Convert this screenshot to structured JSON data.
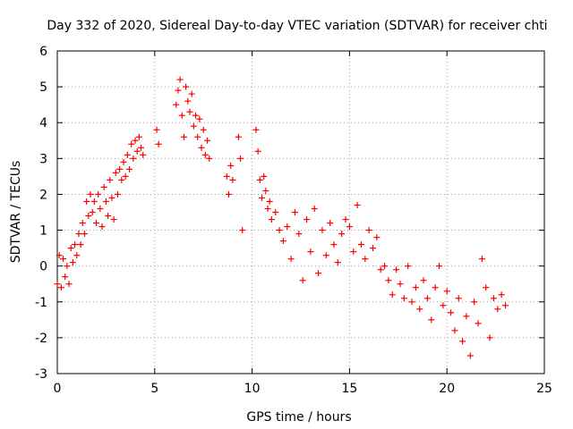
{
  "chart_data": {
    "type": "scatter",
    "title": "Day 332 of 2020, Sidereal Day-to-day VTEC variation (SDTVAR) for receiver chti",
    "xlabel": "GPS time / hours",
    "ylabel": "SDTVAR / TECUs",
    "xlim": [
      0,
      25
    ],
    "ylim": [
      -3,
      6
    ],
    "xticks": [
      0,
      5,
      10,
      15,
      20,
      25
    ],
    "yticks": [
      -3,
      -2,
      -1,
      0,
      1,
      2,
      3,
      4,
      5,
      6
    ],
    "grid": true,
    "marker": "+",
    "color": "#ff0000",
    "series": [
      {
        "name": "SDTVAR",
        "x": [
          0.0,
          0.1,
          0.2,
          0.3,
          0.4,
          0.5,
          0.6,
          0.7,
          0.8,
          0.9,
          1.0,
          1.1,
          1.2,
          1.3,
          1.4,
          1.5,
          1.6,
          1.7,
          1.8,
          1.9,
          2.0,
          2.1,
          2.2,
          2.3,
          2.4,
          2.5,
          2.6,
          2.7,
          2.8,
          2.9,
          3.0,
          3.1,
          3.2,
          3.3,
          3.4,
          3.5,
          3.6,
          3.7,
          3.8,
          3.9,
          4.0,
          4.1,
          4.2,
          4.3,
          4.4,
          5.1,
          5.2,
          6.1,
          6.2,
          6.3,
          6.4,
          6.5,
          6.6,
          6.7,
          6.8,
          6.9,
          7.0,
          7.1,
          7.2,
          7.3,
          7.4,
          7.5,
          7.6,
          7.7,
          7.8,
          8.7,
          8.8,
          8.9,
          9.0,
          9.3,
          9.4,
          9.5,
          10.2,
          10.3,
          10.4,
          10.5,
          10.6,
          10.7,
          10.8,
          10.9,
          11.0,
          11.2,
          11.4,
          11.6,
          11.8,
          12.0,
          12.2,
          12.4,
          12.6,
          12.8,
          13.0,
          13.2,
          13.4,
          13.6,
          13.8,
          14.0,
          14.2,
          14.4,
          14.6,
          14.8,
          15.0,
          15.2,
          15.4,
          15.6,
          15.8,
          16.0,
          16.2,
          16.4,
          16.6,
          16.8,
          17.0,
          17.2,
          17.4,
          17.6,
          17.8,
          18.0,
          18.2,
          18.4,
          18.6,
          18.8,
          19.0,
          19.2,
          19.4,
          19.6,
          19.8,
          20.0,
          20.2,
          20.4,
          20.6,
          20.8,
          21.0,
          21.2,
          21.4,
          21.6,
          21.8,
          22.0,
          22.2,
          22.4,
          22.6,
          22.8,
          23.0
        ],
        "y": [
          -0.5,
          0.3,
          -0.6,
          0.2,
          -0.3,
          0.0,
          -0.5,
          0.5,
          0.1,
          0.6,
          0.3,
          0.9,
          0.6,
          1.2,
          0.9,
          1.8,
          1.4,
          2.0,
          1.5,
          1.8,
          1.2,
          2.0,
          1.6,
          1.1,
          2.2,
          1.8,
          1.4,
          2.4,
          1.9,
          1.3,
          2.6,
          2.0,
          2.7,
          2.4,
          2.9,
          2.5,
          3.1,
          2.7,
          3.4,
          3.0,
          3.5,
          3.2,
          3.6,
          3.3,
          3.1,
          3.8,
          3.4,
          4.5,
          4.9,
          5.2,
          4.2,
          3.6,
          5.0,
          4.6,
          4.3,
          4.8,
          3.9,
          4.2,
          3.6,
          4.1,
          3.3,
          3.8,
          3.1,
          3.5,
          3.0,
          2.5,
          2.0,
          2.8,
          2.4,
          3.6,
          3.0,
          1.0,
          3.8,
          3.2,
          2.4,
          1.9,
          2.5,
          2.1,
          1.6,
          1.8,
          1.3,
          1.5,
          1.0,
          0.7,
          1.1,
          0.2,
          1.5,
          0.9,
          -0.4,
          1.3,
          0.4,
          1.6,
          -0.2,
          1.0,
          0.3,
          1.2,
          0.6,
          0.1,
          0.9,
          1.3,
          1.1,
          0.4,
          1.7,
          0.6,
          0.2,
          1.0,
          0.5,
          0.8,
          -0.1,
          0.0,
          -0.4,
          -0.8,
          -0.1,
          -0.5,
          -0.9,
          0.0,
          -1.0,
          -0.6,
          -1.2,
          -0.4,
          -0.9,
          -1.5,
          -0.6,
          0.0,
          -1.1,
          -0.7,
          -1.3,
          -1.8,
          -0.9,
          -2.1,
          -1.4,
          -2.5,
          -1.0,
          -1.6,
          0.2,
          -0.6,
          -2.0,
          -0.9,
          -1.2,
          -0.8,
          -1.1
        ]
      }
    ]
  }
}
